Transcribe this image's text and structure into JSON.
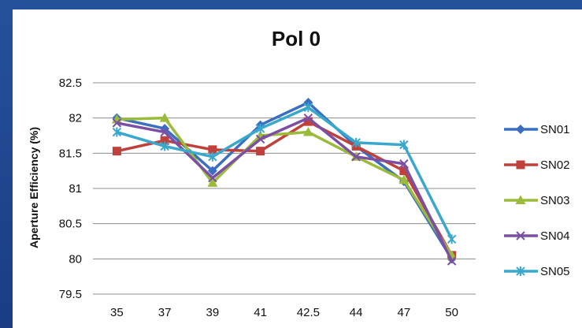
{
  "chart_data": {
    "type": "line",
    "title": "Pol 0",
    "xlabel": "",
    "ylabel": "Aperture Efficiency (%)",
    "categories": [
      "35",
      "37",
      "39",
      "41",
      "42.5",
      "44",
      "47",
      "50"
    ],
    "ylim": [
      79.5,
      82.5
    ],
    "yticks": [
      "82.5",
      "82",
      "81.5",
      "81",
      "80.5",
      "80",
      "79.5"
    ],
    "grid": true,
    "legend_position": "right",
    "series": [
      {
        "name": "SN01",
        "color": "#3a6fc0",
        "marker": "diamond",
        "values": [
          82.0,
          81.85,
          81.25,
          81.9,
          82.22,
          81.6,
          81.1,
          80.0
        ]
      },
      {
        "name": "SN02",
        "color": "#c0413b",
        "marker": "square",
        "values": [
          81.53,
          81.68,
          81.55,
          81.53,
          81.95,
          81.6,
          81.25,
          80.05
        ]
      },
      {
        "name": "SN03",
        "color": "#9bbb3b",
        "marker": "triangle",
        "values": [
          81.98,
          82.0,
          81.08,
          81.75,
          81.8,
          81.45,
          81.12,
          80.05
        ]
      },
      {
        "name": "SN04",
        "color": "#7b4fa3",
        "marker": "x",
        "values": [
          81.93,
          81.8,
          81.15,
          81.7,
          82.0,
          81.45,
          81.35,
          79.97
        ]
      },
      {
        "name": "SN05",
        "color": "#3aa8cc",
        "marker": "star",
        "values": [
          81.8,
          81.6,
          81.45,
          81.85,
          82.15,
          81.65,
          81.62,
          80.28
        ]
      }
    ]
  }
}
